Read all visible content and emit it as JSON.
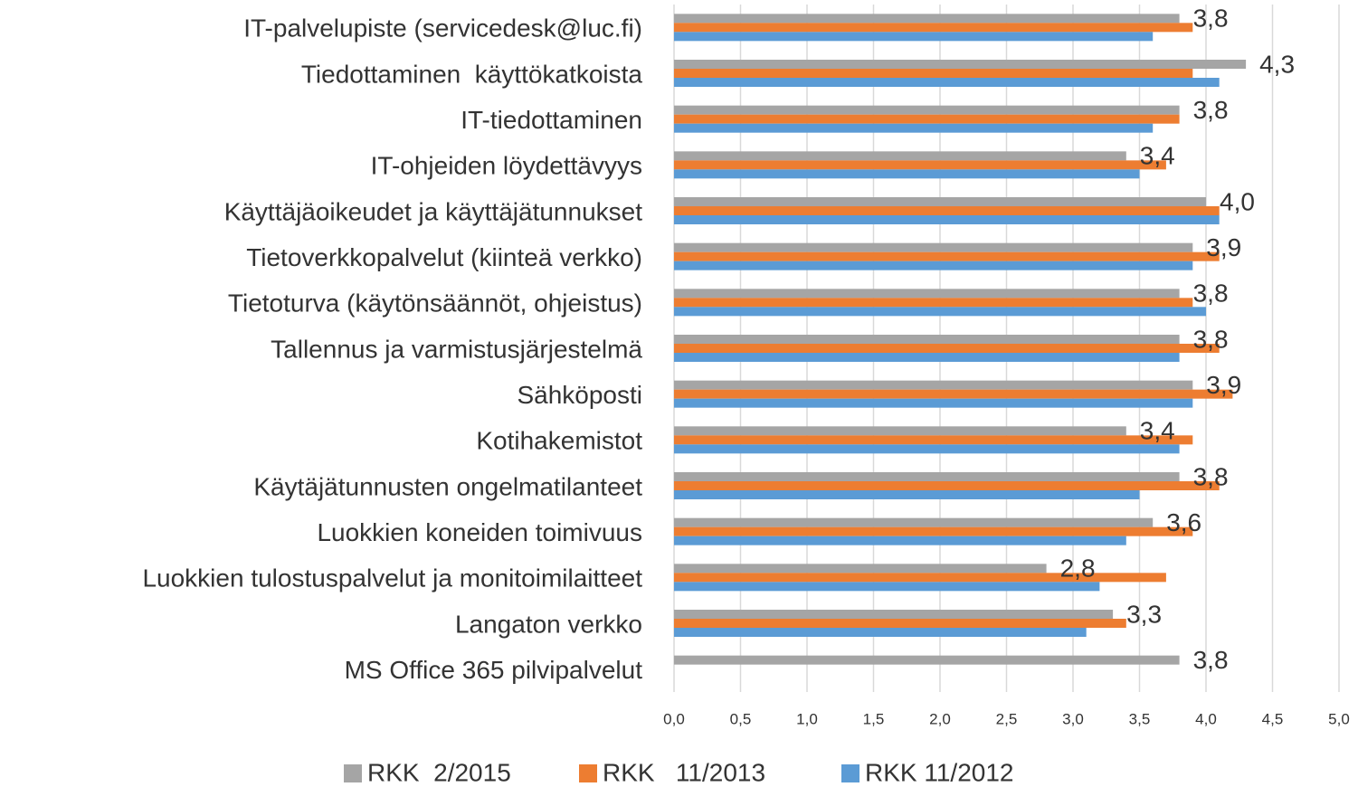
{
  "chart_data": {
    "type": "bar",
    "orientation": "horizontal",
    "categories": [
      "IT-palvelupiste (servicedesk@luc.fi)",
      "Tiedottaminen  käyttökatkoista",
      "IT-tiedottaminen",
      "IT-ohjeiden löydettävyys",
      "Käyttäjäoikeudet ja käyttäjätunnukset",
      "Tietoverkkopalvelut (kiinteä verkko)",
      "Tietoturva (käytönsäännöt, ohjeistus)",
      "Tallennus ja varmistusjärjestelmä",
      "Sähköposti",
      "Kotihakemistot",
      "Käytäjätunnusten ongelmatilanteet",
      "Luokkien koneiden toimivuus",
      "Luokkien tulostuspalvelut ja monitoimilaitteet",
      "Langaton verkko",
      "MS Office 365 pilvipalvelut"
    ],
    "series": [
      {
        "name": "RKK  2/2015",
        "color": "#a5a5a5",
        "values": [
          3.8,
          4.3,
          3.8,
          3.4,
          4.0,
          3.9,
          3.8,
          3.8,
          3.9,
          3.4,
          3.8,
          3.6,
          2.8,
          3.3,
          3.8
        ],
        "value_labels": [
          "3,8",
          "4,3",
          "3,8",
          "3,4",
          "4,0",
          "3,9",
          "3,8",
          "3,8",
          "3,9",
          "3,4",
          "3,8",
          "3,6",
          "2,8",
          "3,3",
          "3,8"
        ]
      },
      {
        "name": "RKK   11/2013",
        "color": "#ed7d31",
        "values": [
          3.9,
          3.9,
          3.8,
          3.7,
          4.1,
          4.1,
          3.9,
          4.1,
          4.2,
          3.9,
          4.1,
          3.9,
          3.7,
          3.4,
          null
        ]
      },
      {
        "name": "RKK 11/2012",
        "color": "#5b9bd5",
        "values": [
          3.6,
          4.1,
          3.6,
          3.5,
          4.1,
          3.9,
          4.0,
          3.8,
          3.9,
          3.8,
          3.5,
          3.4,
          3.2,
          3.1,
          null
        ]
      }
    ],
    "xlim": [
      0,
      5
    ],
    "xticks": [
      {
        "value": 0,
        "label": "0,0"
      },
      {
        "value": 0.5,
        "label": "0,5"
      },
      {
        "value": 1,
        "label": "1,0"
      },
      {
        "value": 1.5,
        "label": "1,5"
      },
      {
        "value": 2,
        "label": "2,0"
      },
      {
        "value": 2.5,
        "label": "2,5"
      },
      {
        "value": 3,
        "label": "3,0"
      },
      {
        "value": 3.5,
        "label": "3,5"
      },
      {
        "value": 4,
        "label": "4,0"
      },
      {
        "value": 4.5,
        "label": "4,5"
      },
      {
        "value": 5,
        "label": "5,0"
      }
    ],
    "grid": true,
    "legend": "bottom"
  }
}
